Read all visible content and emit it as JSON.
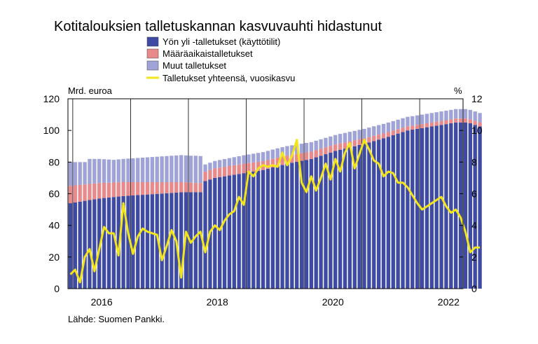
{
  "chart_data": {
    "type": "bar",
    "title": "Kotitalouksien talletuskannan kasvuvauhti hidastunut",
    "left_axis_unit": "Mrd. euroa",
    "right_axis_unit": "%",
    "source": "Lähde: Suomen Pankki.",
    "ylim_left": [
      0,
      120
    ],
    "ylim_right": [
      0,
      12
    ],
    "yticks_left": [
      "0",
      "20",
      "40",
      "60",
      "80",
      "100",
      "120"
    ],
    "yticks_right": [
      "0",
      "2",
      "4",
      "6",
      "8",
      "10",
      "12"
    ],
    "x_range": [
      "2015-12",
      "2022-10"
    ],
    "x_tick_labels": [
      "2016",
      "2018",
      "2020",
      "2022"
    ],
    "gridlines": "vertical at year boundaries",
    "legend": [
      {
        "label": "Yön yli -talletukset (käyttötilit)",
        "color": "#3f4ba3",
        "kind": "bar"
      },
      {
        "label": "Määräaikaistalletukset",
        "color": "#e8898b",
        "kind": "bar"
      },
      {
        "label": "Muut talletukset",
        "color": "#9fa3d8",
        "kind": "bar"
      },
      {
        "label": "Talletukset yhteensä, vuosikasvu",
        "color": "#f2e51b",
        "kind": "line"
      }
    ],
    "series": [
      {
        "name": "Yön yli -talletukset (käyttötilit)",
        "stack": true,
        "color": "#3f4ba3",
        "axis": "left",
        "start": "2015-12",
        "freq": "monthly",
        "values": [
          54.0,
          54.5,
          55.0,
          55.5,
          56.0,
          56.5,
          57.0,
          57.3,
          57.6,
          57.9,
          58.2,
          58.5,
          58.7,
          58.9,
          59.1,
          59.3,
          59.5,
          59.7,
          59.9,
          60.1,
          60.3,
          60.5,
          60.7,
          60.9,
          61.0,
          61.0,
          61.0,
          61.0,
          68.0,
          69.0,
          70.0,
          70.5,
          71.0,
          71.5,
          72.0,
          72.5,
          73.0,
          73.5,
          74.0,
          74.5,
          75.0,
          75.8,
          76.6,
          77.4,
          78.2,
          79.0,
          79.6,
          80.2,
          80.8,
          81.4,
          82.0,
          83.0,
          84.0,
          85.0,
          86.0,
          87.0,
          87.8,
          88.5,
          89.3,
          90.0,
          90.8,
          91.5,
          92.4,
          93.3,
          94.2,
          95.0,
          96.0,
          97.0,
          98.0,
          99.0,
          100.0,
          100.5,
          101.0,
          101.5,
          102.0,
          102.5,
          103.0,
          103.5,
          104.0,
          104.5,
          105.0,
          105.0,
          105.0,
          104.5,
          103.5,
          102.5
        ]
      },
      {
        "name": "Määräaikaistalletukset",
        "stack": true,
        "color": "#e8898b",
        "axis": "left",
        "start": "2015-12",
        "freq": "monthly",
        "values": [
          11.0,
          10.8,
          10.6,
          10.4,
          10.2,
          10.0,
          9.8,
          9.6,
          9.4,
          9.2,
          9.0,
          8.8,
          8.6,
          8.4,
          8.2,
          8.0,
          7.8,
          7.6,
          7.4,
          7.2,
          7.0,
          6.8,
          6.6,
          6.4,
          6.2,
          6.0,
          5.8,
          5.8,
          6.0,
          6.0,
          6.0,
          6.0,
          6.0,
          6.0,
          6.0,
          6.0,
          6.0,
          5.9,
          5.8,
          5.7,
          5.6,
          5.5,
          5.4,
          5.3,
          5.2,
          5.1,
          5.0,
          4.9,
          4.8,
          4.7,
          4.6,
          4.5,
          4.4,
          4.3,
          4.2,
          4.1,
          4.0,
          3.9,
          3.8,
          3.7,
          3.6,
          3.5,
          3.4,
          3.3,
          3.2,
          3.1,
          3.0,
          2.9,
          2.8,
          2.7,
          2.6,
          2.5,
          2.5,
          2.5,
          2.5,
          2.5,
          2.5,
          2.5,
          2.5,
          2.5,
          2.5,
          2.5,
          2.5,
          2.5,
          2.5,
          2.5
        ]
      },
      {
        "name": "Muut talletukset",
        "stack": true,
        "color": "#9fa3d8",
        "axis": "left",
        "start": "2015-12",
        "freq": "monthly",
        "values": [
          15.0,
          14.7,
          14.4,
          14.1,
          15.8,
          15.5,
          15.2,
          14.9,
          14.6,
          14.3,
          14.5,
          14.7,
          14.9,
          15.1,
          15.3,
          15.5,
          15.7,
          15.9,
          16.1,
          16.3,
          16.5,
          16.7,
          16.9,
          17.1,
          17.0,
          17.0,
          17.2,
          17.0,
          4.5,
          4.6,
          4.7,
          4.8,
          4.9,
          5.0,
          5.1,
          5.2,
          5.3,
          5.4,
          5.5,
          5.6,
          5.7,
          5.8,
          5.9,
          6.0,
          6.0,
          6.0,
          6.0,
          6.0,
          6.0,
          6.0,
          6.0,
          6.0,
          6.0,
          6.0,
          6.0,
          6.0,
          6.0,
          6.0,
          6.0,
          6.0,
          6.0,
          6.0,
          6.0,
          6.0,
          6.0,
          6.0,
          6.0,
          6.0,
          6.0,
          6.0,
          6.0,
          6.0,
          6.0,
          6.0,
          6.0,
          6.0,
          6.0,
          6.0,
          6.0,
          6.0,
          6.0,
          6.0,
          6.0,
          6.0,
          6.0,
          6.0
        ]
      },
      {
        "name": "Talletukset yhteensä, vuosikasvu",
        "type": "line",
        "color": "#f2e51b",
        "axis": "right",
        "start": "2015-12",
        "freq": "monthly",
        "values": [
          0.9,
          1.2,
          0.4,
          2.0,
          2.5,
          1.1,
          2.5,
          3.9,
          3.5,
          3.5,
          2.1,
          5.4,
          3.5,
          2.2,
          3.3,
          3.8,
          3.6,
          3.5,
          3.4,
          1.8,
          2.7,
          3.7,
          3.0,
          0.7,
          3.6,
          2.9,
          3.3,
          3.6,
          2.3,
          3.6,
          4.0,
          3.7,
          4.3,
          4.7,
          4.9,
          5.8,
          5.3,
          7.4,
          7.1,
          7.6,
          7.8,
          7.7,
          7.8,
          7.7,
          8.6,
          7.8,
          8.4,
          9.4,
          6.7,
          6.1,
          7.1,
          6.2,
          7.0,
          7.9,
          6.9,
          8.2,
          7.4,
          8.6,
          9.2,
          7.6,
          8.5,
          9.4,
          8.8,
          8.1,
          7.9,
          7.1,
          7.4,
          7.3,
          6.7,
          6.7,
          6.4,
          5.9,
          5.4,
          5.0,
          5.2,
          5.4,
          5.6,
          5.8,
          5.2,
          4.8,
          5.0,
          4.5,
          3.6,
          2.3,
          2.6,
          2.6
        ]
      }
    ]
  }
}
